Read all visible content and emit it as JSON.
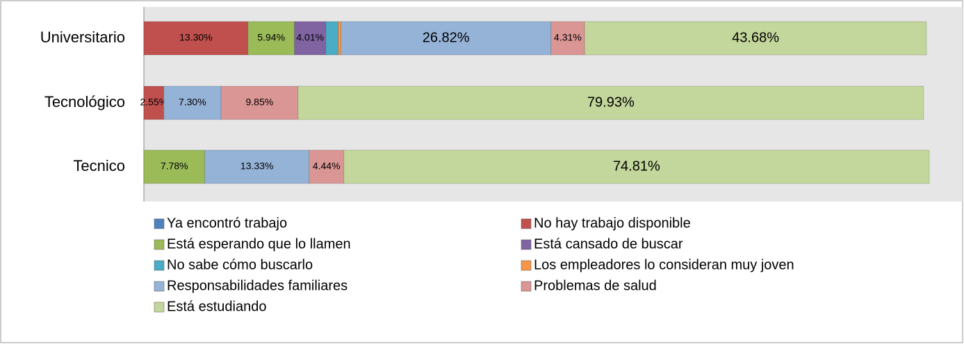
{
  "chart_data": {
    "type": "stacked_barh",
    "categories": [
      "Universitario",
      "Tecnológico",
      "Tecnico"
    ],
    "xlim": [
      0,
      100
    ],
    "series": [
      {
        "name": "Ya encontró trabajo",
        "color": "#4f81bd",
        "values": [
          null,
          null,
          null
        ],
        "value_labels": [
          null,
          null,
          null
        ]
      },
      {
        "name": "No hay trabajo disponible",
        "color": "#c0504d",
        "values": [
          13.3,
          2.55,
          null
        ],
        "value_labels": [
          "13.30%",
          "2.55%",
          null
        ]
      },
      {
        "name": "Está esperando que lo llamen",
        "color": "#9bbb59",
        "values": [
          5.94,
          null,
          7.78
        ],
        "value_labels": [
          "5.94%",
          null,
          "7.78%"
        ]
      },
      {
        "name": "Está cansado de buscar",
        "color": "#8064a2",
        "values": [
          4.01,
          null,
          null
        ],
        "value_labels": [
          "4.01%",
          null,
          null
        ]
      },
      {
        "name": "No sabe cómo buscarlo",
        "color": "#4bacc6",
        "values": [
          1.58,
          null,
          null
        ],
        "value_labels": [
          null,
          null,
          null
        ]
      },
      {
        "name": "Los empleadores lo consideran muy joven",
        "color": "#f79646",
        "values": [
          0.36,
          null,
          null
        ],
        "value_labels": [
          null,
          null,
          null
        ]
      },
      {
        "name": "Responsabilidades familiares",
        "color": "#95b3d7",
        "values": [
          26.82,
          7.3,
          13.33
        ],
        "value_labels": [
          "26.82%",
          "7.30%",
          "13.33%"
        ]
      },
      {
        "name": "Problemas de salud",
        "color": "#d99694",
        "values": [
          4.31,
          9.85,
          4.44
        ],
        "value_labels": [
          "4.31%",
          "9.85%",
          "4.44%"
        ]
      },
      {
        "name": "Está estudiando",
        "color": "#c3d69b",
        "values": [
          43.68,
          79.93,
          74.81
        ],
        "value_labels": [
          "43.68%",
          "79.93%",
          "74.81%"
        ]
      }
    ]
  }
}
